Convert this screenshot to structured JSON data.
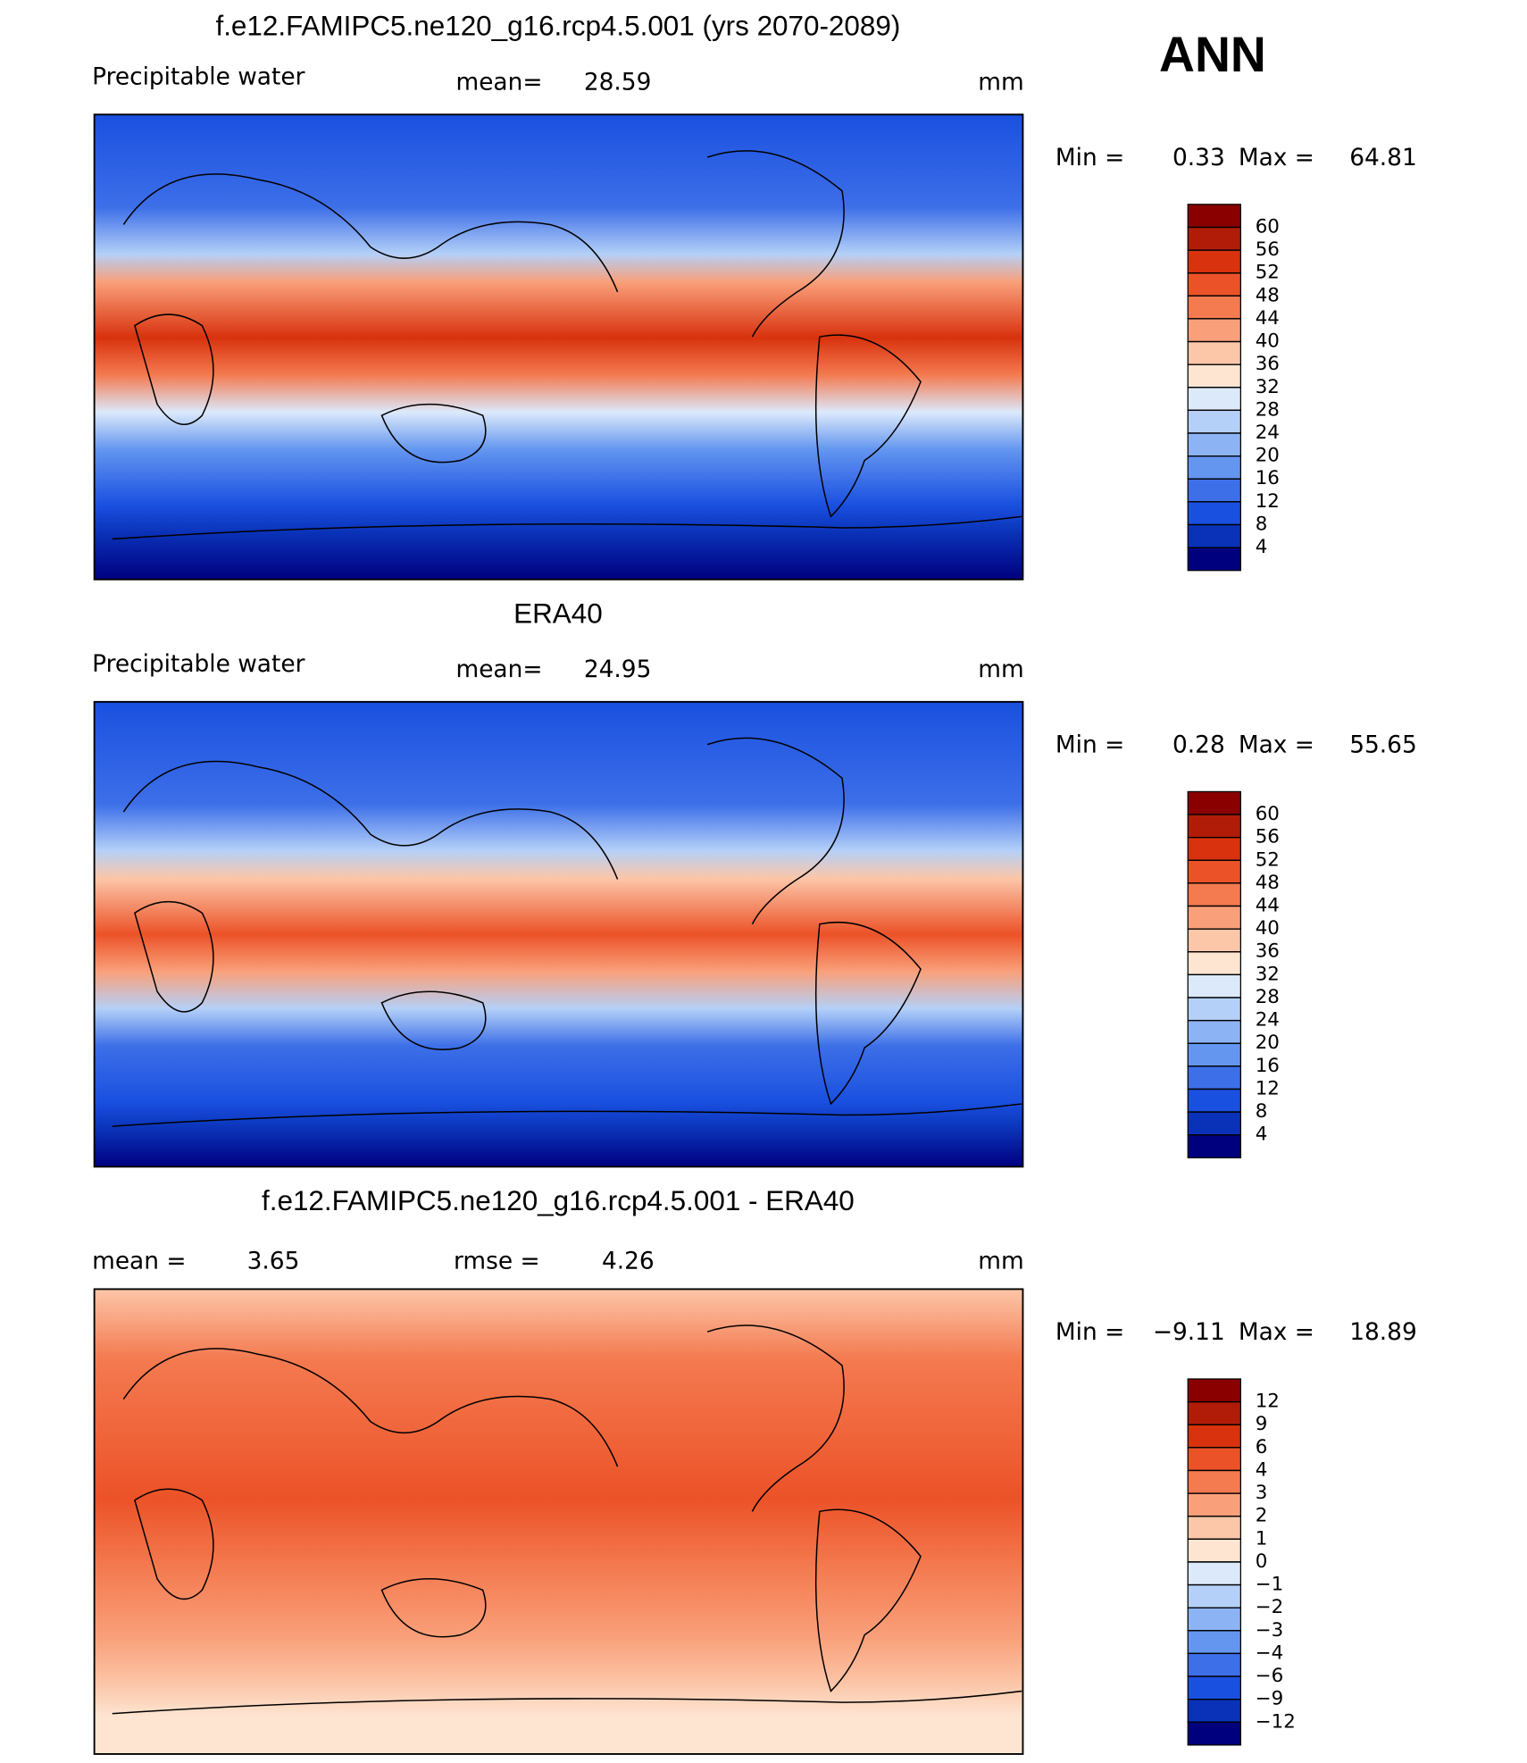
{
  "header": {
    "season": "ANN"
  },
  "panels": [
    {
      "title": "f.e12.FAMIPC5.ne120_g16.rcp4.5.001 (yrs 2070-2089)",
      "variable": "Precipitable water",
      "stats": [
        {
          "label": "mean=",
          "value": 28.59
        }
      ],
      "unit": "mm",
      "min_label": "Min =",
      "min": 0.33,
      "max_label": "Max =",
      "max": 64.81,
      "colorbar": {
        "levels": [
          60,
          56,
          52,
          48,
          44,
          40,
          36,
          32,
          28,
          24,
          20,
          16,
          12,
          8,
          4
        ],
        "colors": [
          "#8a0000",
          "#b01c08",
          "#d8320e",
          "#ec5228",
          "#f47a50",
          "#f9a07a",
          "#fcc6a8",
          "#fde5d2",
          "#dce9fb",
          "#b4d0f8",
          "#8cb4f5",
          "#6496f0",
          "#3d6fe8",
          "#1a50e0",
          "#0a32b8",
          "#00007f"
        ]
      }
    },
    {
      "title": "ERA40",
      "variable": "Precipitable water",
      "stats": [
        {
          "label": "mean=",
          "value": 24.95
        }
      ],
      "unit": "mm",
      "min_label": "Min =",
      "min": 0.28,
      "max_label": "Max =",
      "max": 55.65,
      "colorbar": {
        "levels": [
          60,
          56,
          52,
          48,
          44,
          40,
          36,
          32,
          28,
          24,
          20,
          16,
          12,
          8,
          4
        ],
        "colors": [
          "#8a0000",
          "#b01c08",
          "#d8320e",
          "#ec5228",
          "#f47a50",
          "#f9a07a",
          "#fcc6a8",
          "#fde5d2",
          "#dce9fb",
          "#b4d0f8",
          "#8cb4f5",
          "#6496f0",
          "#3d6fe8",
          "#1a50e0",
          "#0a32b8",
          "#00007f"
        ]
      }
    },
    {
      "title": "f.e12.FAMIPC5.ne120_g16.rcp4.5.001 - ERA40",
      "stats": [
        {
          "label": "mean =",
          "value": 3.65
        },
        {
          "label": "rmse =",
          "value": 4.26
        }
      ],
      "unit": "mm",
      "min_label": "Min =",
      "min": {
        "value": -9.11,
        "label": "−9.11"
      },
      "max_label": "Max =",
      "max": 18.89,
      "colorbar": {
        "levels": [
          12,
          9,
          6,
          4,
          3,
          2,
          1,
          0,
          {
            "value": -1,
            "label": "−1"
          },
          {
            "value": -2,
            "label": "−2"
          },
          {
            "value": -3,
            "label": "−3"
          },
          {
            "value": -4,
            "label": "−4"
          },
          {
            "value": -6,
            "label": "−6"
          },
          {
            "value": -9,
            "label": "−9"
          },
          {
            "value": -12,
            "label": "−12"
          }
        ],
        "colors": [
          "#8a0000",
          "#b01c08",
          "#d8320e",
          "#ec5228",
          "#f47a50",
          "#f9a07a",
          "#fcc6a8",
          "#fde5d2",
          "#dce9fb",
          "#b4d0f8",
          "#8cb4f5",
          "#6496f0",
          "#3d6fe8",
          "#1a50e0",
          "#0a32b8",
          "#00007f"
        ]
      }
    }
  ]
}
